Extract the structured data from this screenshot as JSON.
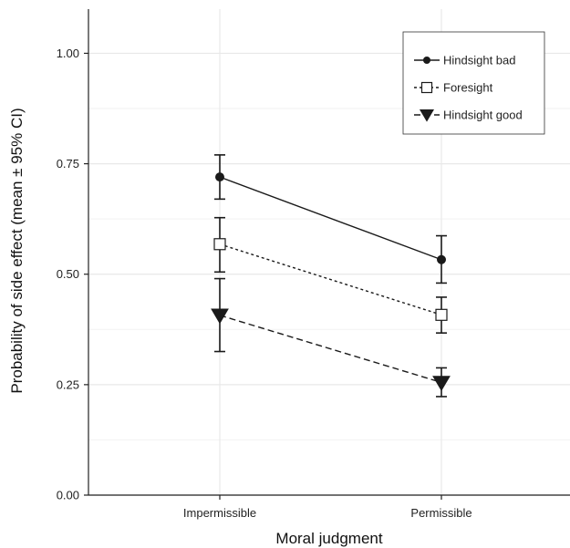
{
  "chart_data": {
    "type": "line",
    "title": "",
    "xlabel": "Moral judgment",
    "ylabel": "Probability of side effect (mean ± 95% CI)",
    "categories": [
      "Impermissible",
      "Permissible"
    ],
    "ylim": [
      0,
      1.1
    ],
    "yticks": [
      "0.00",
      "0.25",
      "0.50",
      "0.75",
      "1.00"
    ],
    "grid": true,
    "legend_position": "top-right",
    "series": [
      {
        "name": "Hindsight bad",
        "marker": "circle-filled",
        "line_style": "solid",
        "values": [
          0.72,
          0.533
        ],
        "ci_low": [
          0.67,
          0.48
        ],
        "ci_high": [
          0.77,
          0.587
        ]
      },
      {
        "name": "Foresight",
        "marker": "square-open",
        "line_style": "dotted",
        "values": [
          0.568,
          0.408
        ],
        "ci_low": [
          0.505,
          0.367
        ],
        "ci_high": [
          0.628,
          0.448
        ]
      },
      {
        "name": "Hindsight good",
        "marker": "triangle-down-filled",
        "line_style": "dashed",
        "values": [
          0.407,
          0.255
        ],
        "ci_low": [
          0.325,
          0.223
        ],
        "ci_high": [
          0.49,
          0.288
        ]
      }
    ],
    "colors": {
      "line": "#1a1a1a",
      "grid": "#e8e8e8",
      "axis": "#222222",
      "background": "#ffffff"
    }
  }
}
